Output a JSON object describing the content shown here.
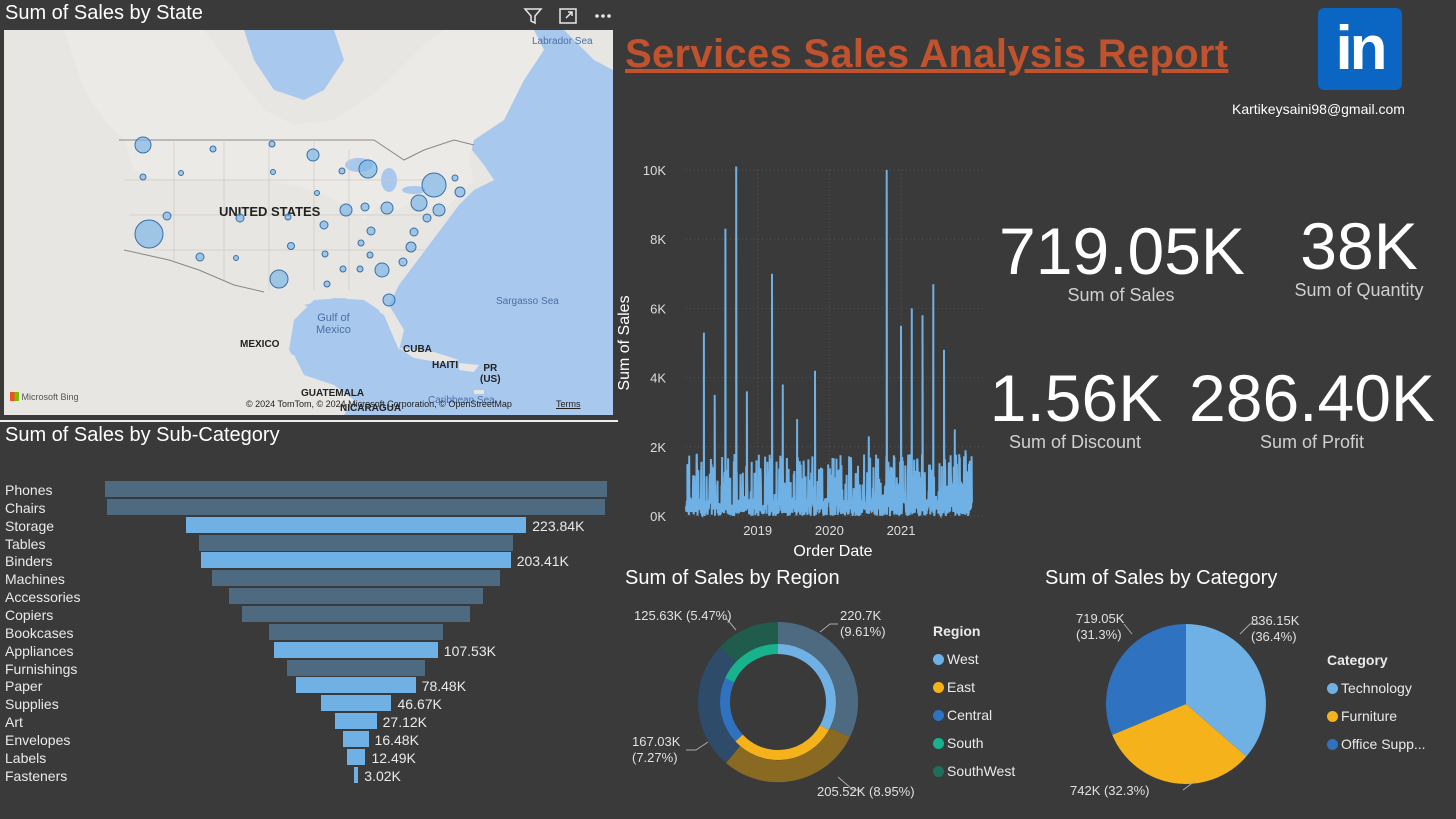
{
  "report": {
    "title": "Services Sales Analysis Report",
    "email": "Kartikeysaini98@gmail.com",
    "logo_text": "in"
  },
  "map": {
    "title": "Sum of Sales by State",
    "labels": {
      "usa": "UNITED STATES",
      "mexico": "MEXICO",
      "cuba": "CUBA",
      "haiti": "HAITI",
      "pr": "PR\n(US)",
      "guatemala": "GUATEMALA",
      "nicaragua": "NICARAGUA"
    },
    "water": {
      "labrador": "Labrador Sea",
      "sargasso": "Sargasso Sea",
      "gulf": "Gulf of\nMexico",
      "caribbean": "Caribbean Sea"
    },
    "attribution": "© 2024 TomTom, © 2024 Microsoft Corporation, © OpenStreetMap",
    "terms": "Terms",
    "bing": "Microsoft Bing"
  },
  "kpis": {
    "sales": {
      "value": "719.05K",
      "label": "Sum of Sales"
    },
    "quantity": {
      "value": "38K",
      "label": "Sum of Quantity"
    },
    "discount": {
      "value": "1.56K",
      "label": "Sum of Discount"
    },
    "profit": {
      "value": "286.40K",
      "label": "Sum of Profit"
    }
  },
  "subcategory": {
    "title": "Sum of Sales by Sub-Category",
    "color_light": "#6fb1e4",
    "color_dark": "#4e6a80",
    "items": [
      {
        "name": "Phones",
        "value": 330,
        "label": "",
        "dark": true
      },
      {
        "name": "Chairs",
        "value": 328,
        "label": "",
        "dark": true
      },
      {
        "name": "Storage",
        "value": 223.84,
        "label": "223.84K",
        "dark": false
      },
      {
        "name": "Tables",
        "value": 207,
        "label": "",
        "dark": true
      },
      {
        "name": "Binders",
        "value": 203.41,
        "label": "203.41K",
        "dark": false
      },
      {
        "name": "Machines",
        "value": 189,
        "label": "",
        "dark": true
      },
      {
        "name": "Accessories",
        "value": 167,
        "label": "",
        "dark": true
      },
      {
        "name": "Copiers",
        "value": 150,
        "label": "",
        "dark": true
      },
      {
        "name": "Bookcases",
        "value": 114,
        "label": "",
        "dark": true
      },
      {
        "name": "Appliances",
        "value": 107.53,
        "label": "107.53K",
        "dark": false
      },
      {
        "name": "Furnishings",
        "value": 91,
        "label": "",
        "dark": true
      },
      {
        "name": "Paper",
        "value": 78.48,
        "label": "78.48K",
        "dark": false
      },
      {
        "name": "Supplies",
        "value": 46.67,
        "label": "46.67K",
        "dark": false
      },
      {
        "name": "Art",
        "value": 27.12,
        "label": "27.12K",
        "dark": false
      },
      {
        "name": "Envelopes",
        "value": 16.48,
        "label": "16.48K",
        "dark": false
      },
      {
        "name": "Labels",
        "value": 12.49,
        "label": "12.49K",
        "dark": false
      },
      {
        "name": "Fasteners",
        "value": 3.02,
        "label": "3.02K",
        "dark": false
      }
    ]
  },
  "chart_data": [
    {
      "type": "line",
      "xlabel": "Order Date",
      "ylabel": "Sum of Sales",
      "y_ticks": [
        "0K",
        "2K",
        "4K",
        "6K",
        "8K",
        "10K"
      ],
      "x_ticks": [
        "2019",
        "2020",
        "2021"
      ],
      "ylim": [
        0,
        10000
      ],
      "color": "#6fb1e4",
      "spikes": [
        {
          "x": 2018.02,
          "y": 1500
        },
        {
          "x": 2018.15,
          "y": 1800
        },
        {
          "x": 2018.25,
          "y": 5300
        },
        {
          "x": 2018.4,
          "y": 3500
        },
        {
          "x": 2018.55,
          "y": 8300
        },
        {
          "x": 2018.7,
          "y": 10100
        },
        {
          "x": 2018.85,
          "y": 3600
        },
        {
          "x": 2019.2,
          "y": 7000
        },
        {
          "x": 2019.35,
          "y": 3800
        },
        {
          "x": 2019.55,
          "y": 2800
        },
        {
          "x": 2019.8,
          "y": 4200
        },
        {
          "x": 2020.1,
          "y": 1600
        },
        {
          "x": 2020.3,
          "y": 1700
        },
        {
          "x": 2020.55,
          "y": 2300
        },
        {
          "x": 2020.8,
          "y": 10000
        },
        {
          "x": 2021.0,
          "y": 5500
        },
        {
          "x": 2021.15,
          "y": 6000
        },
        {
          "x": 2021.3,
          "y": 5800
        },
        {
          "x": 2021.45,
          "y": 6700
        },
        {
          "x": 2021.6,
          "y": 4800
        },
        {
          "x": 2021.75,
          "y": 2500
        },
        {
          "x": 2021.9,
          "y": 1900
        }
      ]
    },
    {
      "type": "pie",
      "subtype": "donut",
      "title": "Sum of Sales by Region",
      "legend_title": "Region",
      "slices": [
        {
          "name": "West",
          "value": 220.7,
          "label": "220.7K\n(9.61%)",
          "color": "#6fb1e4"
        },
        {
          "name": "East",
          "value": 205.52,
          "label": "205.52K (8.95%)",
          "color": "#f5b21b"
        },
        {
          "name": "Central",
          "value": 167.03,
          "label": "167.03K\n(7.27%)",
          "color": "#2f72c0"
        },
        {
          "name": "South",
          "value": 125.63,
          "label": "125.63K (5.47%)",
          "color": "#18b38c"
        },
        {
          "name": "SouthWest",
          "value": 0,
          "label": "",
          "color": "#1f6e5c"
        }
      ]
    },
    {
      "type": "pie",
      "title": "Sum of Sales by Category",
      "legend_title": "Category",
      "slices": [
        {
          "name": "Technology",
          "value": 836.15,
          "label": "836.15K\n(36.4%)",
          "color": "#6fb1e4"
        },
        {
          "name": "Furniture",
          "value": 742,
          "label": "742K (32.3%)",
          "color": "#f5b21b"
        },
        {
          "name": "Office Supp...",
          "value": 719.05,
          "label": "719.05K\n(31.3%)",
          "color": "#2f72c0"
        }
      ]
    }
  ]
}
